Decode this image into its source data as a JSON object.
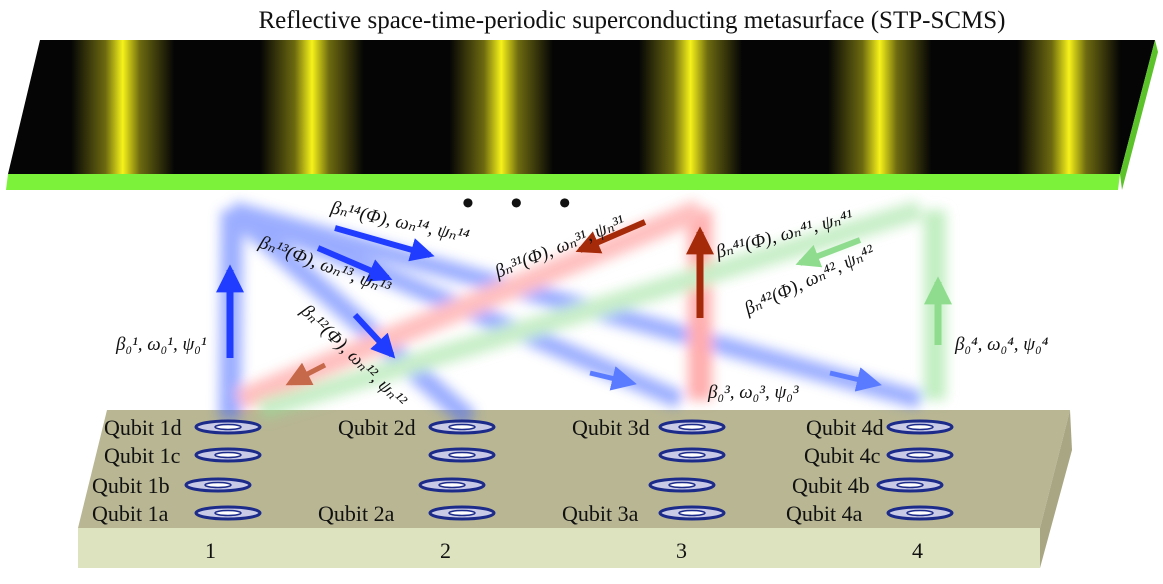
{
  "title": "Reflective space-time-periodic superconducting metasurface (STP-SCMS)",
  "ellipsis": "• • •",
  "colors": {
    "metasurface_bg": "#050505",
    "stripe": "#f6f21a",
    "metasurface_edge": "#7cf23a",
    "board_top": "#b8b693",
    "board_front": "#dde3bf",
    "board_side": "#a9a783",
    "blue": "#1f3cff",
    "red": "#ff5a5a",
    "dark_red": "#a52a0a",
    "green": "#7fdc7f",
    "qubit_ring": "#1c2a8a"
  },
  "qubits": [
    {
      "column": "1",
      "labels": [
        "Qubit 1d",
        "Qubit 1c",
        "Qubit 1b",
        "Qubit 1a"
      ]
    },
    {
      "column": "2",
      "labels": [
        "Qubit 2d",
        "",
        "",
        "Qubit 2a"
      ]
    },
    {
      "column": "3",
      "labels": [
        "Qubit 3d",
        "",
        "",
        "Qubit 3a"
      ]
    },
    {
      "column": "4",
      "labels": [
        "Qubit 4d",
        "Qubit 4c",
        "Qubit 4b",
        "Qubit 4a"
      ]
    }
  ],
  "formulas": {
    "f1_0": "β₀¹, ω₀¹, ψ₀¹",
    "f3_0": "β₀³, ω₀³, ψ₀³",
    "f4_0": "β₀⁴, ω₀⁴, ψ₀⁴",
    "f14": "βₙ¹⁴(Φ), ωₙ¹⁴, ψₙ¹⁴",
    "f13": "βₙ¹³(Φ), ωₙ¹³, ψₙ¹³",
    "f12": "βₙ¹²(Φ), ωₙ¹², ψₙ¹²",
    "f31": "βₙ³¹(Φ), ωₙ³¹, ψₙ³¹",
    "f41": "βₙ⁴¹(Φ), ωₙ⁴¹, ψₙ⁴¹",
    "f42": "βₙ⁴²(Φ), ωₙ⁴², ψₙ⁴²"
  }
}
